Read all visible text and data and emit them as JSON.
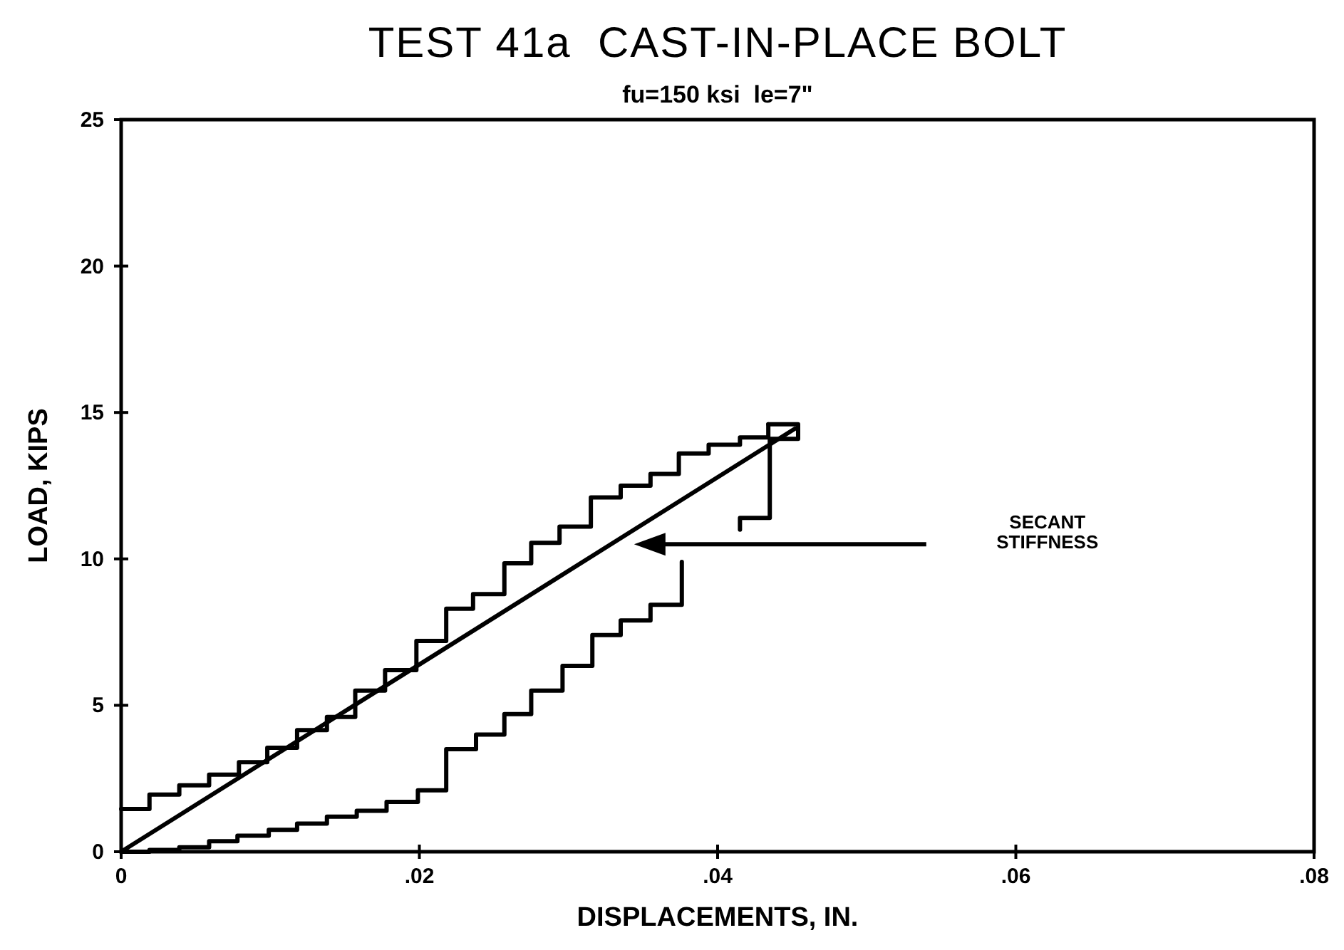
{
  "chart_data": {
    "type": "step",
    "title": "TEST 41a  CAST-IN-PLACE BOLT",
    "subtitle": "fu=150 ksi  le=7\"",
    "xlabel": "DISPLACEMENTS, IN.",
    "ylabel": "LOAD, KIPS",
    "xlim": [
      0,
      0.08
    ],
    "ylim": [
      0,
      25
    ],
    "xticks": [
      0,
      {
        "value": 0.02,
        "label": ".02"
      },
      {
        "value": 0.04,
        "label": ".04"
      },
      {
        "value": 0.06,
        "label": ".06"
      },
      {
        "value": 0.08,
        "label": ".08"
      }
    ],
    "yticks": [
      0,
      5,
      10,
      15,
      20,
      25
    ],
    "grid": false,
    "marker": "none",
    "line_style": "solid",
    "series": [
      {
        "color": "#000000",
        "x": [
          0,
          0.0019,
          0.0039,
          0.0059,
          0.0079,
          0.0098,
          0.0118,
          0.0138,
          0.0157,
          0.0177,
          0.0198,
          0.0218,
          0.0236,
          0.0257,
          0.0275,
          0.0294,
          0.0315,
          0.0335,
          0.0355,
          0.0374,
          0.0394,
          0.0415,
          0.0434
        ],
        "values": [
          1.46,
          1.95,
          2.27,
          2.63,
          3.06,
          3.55,
          4.15,
          4.6,
          5.5,
          6.2,
          7.2,
          8.3,
          8.8,
          9.85,
          10.55,
          11.1,
          12.1,
          12.5,
          12.9,
          13.6,
          13.9,
          14.15,
          14.6
        ]
      },
      {
        "type": "line",
        "color": "#000000",
        "x": [
          0.0434,
          0.0454,
          0.0454,
          0.0435,
          0.0435,
          0.0415,
          0.0415
        ],
        "values": [
          14.6,
          14.6,
          14.1,
          14.1,
          11.4,
          11.4,
          11.0
        ]
      },
      {
        "type": "step",
        "color": "#000000",
        "x": [
          0,
          0.0019,
          0.0039,
          0.0059,
          0.0078,
          0.0099,
          0.0118,
          0.0138,
          0.0158,
          0.0178,
          0.0199,
          0.0218,
          0.0238,
          0.0257,
          0.0275,
          0.0296,
          0.0316,
          0.0335,
          0.0355,
          0.0376
        ],
        "values": [
          0,
          0.06,
          0.15,
          0.36,
          0.55,
          0.75,
          0.96,
          1.2,
          1.4,
          1.7,
          2.1,
          3.5,
          4.0,
          4.7,
          5.5,
          6.35,
          7.4,
          7.9,
          8.43,
          9.9
        ]
      },
      {
        "type": "line",
        "color": "#000000",
        "x": [
          0,
          0.0452
        ],
        "values": [
          0,
          14.45
        ]
      }
    ],
    "annotations": [
      "SECANT STIFFNESS"
    ]
  }
}
